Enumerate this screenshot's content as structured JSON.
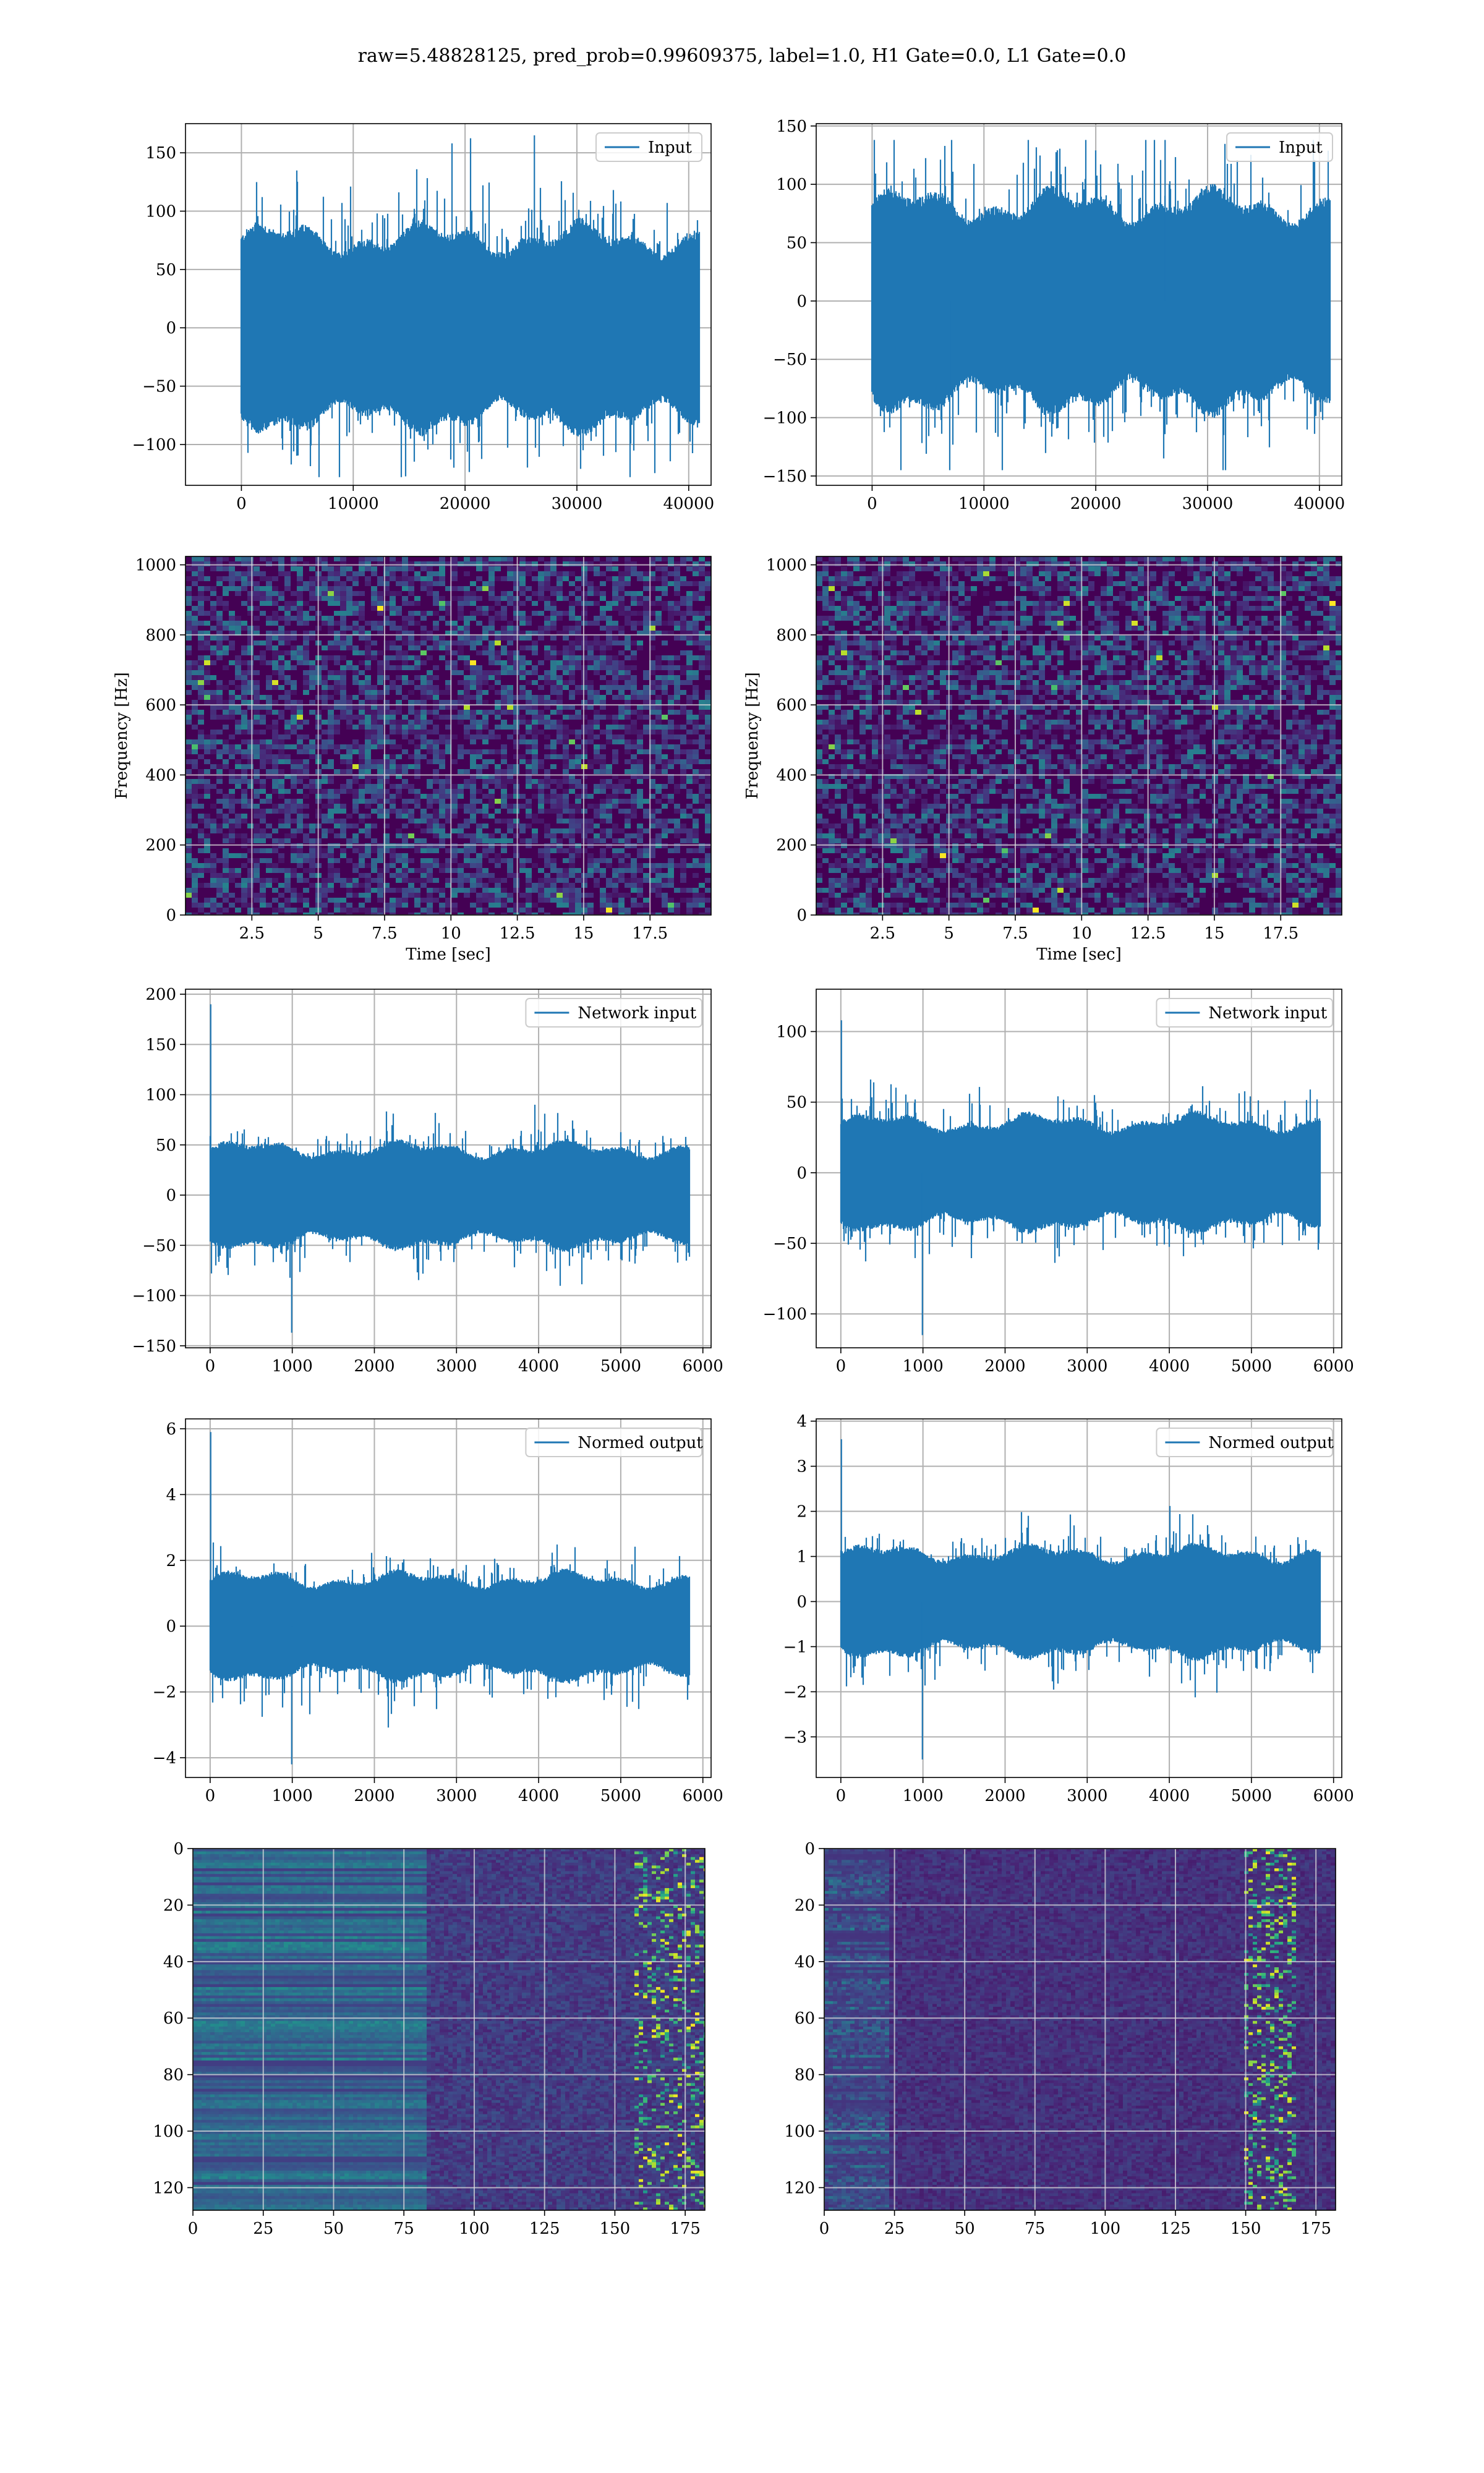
{
  "figure": {
    "suptitle": "raw=5.48828125, pred_prob=0.99609375, label=1.0, H1 Gate=0.0, L1 Gate=0.0"
  },
  "colors": {
    "line": "#1f77b4",
    "grid": "#b0b0b0",
    "viridis_low": "#440154",
    "viridis_high": "#fde725"
  },
  "chart_data": [
    {
      "id": "input-h1",
      "type": "line",
      "signal": "noise",
      "legend": "Input",
      "legend_loc": "upper right",
      "xlim": [
        -5000,
        42000
      ],
      "ylim": [
        -135,
        175
      ],
      "xticks": [
        0,
        10000,
        20000,
        30000,
        40000
      ],
      "yticks": [
        -100,
        -50,
        0,
        50,
        100,
        150
      ],
      "n_samples": 40960,
      "envelope": 75,
      "peak_max": 165,
      "peak_min": -128,
      "grid": true
    },
    {
      "id": "input-l1",
      "type": "line",
      "signal": "noise",
      "legend": "Input",
      "legend_loc": "upper right",
      "xlim": [
        -5000,
        42000
      ],
      "ylim": [
        -158,
        152
      ],
      "xticks": [
        0,
        10000,
        20000,
        30000,
        40000
      ],
      "yticks": [
        -150,
        -100,
        -50,
        0,
        50,
        100,
        150
      ],
      "n_samples": 40960,
      "envelope": 80,
      "peak_max": 138,
      "peak_min": -145,
      "grid": true
    },
    {
      "id": "spec-h1",
      "type": "heatmap",
      "kind": "spectrogram",
      "xlabel": "Time [sec]",
      "ylabel": "Frequency [Hz]",
      "xlim": [
        0,
        19.8
      ],
      "ylim": [
        0,
        1024
      ],
      "xticks": [
        2.5,
        5.0,
        7.5,
        10.0,
        12.5,
        15.0,
        17.5
      ],
      "yticks": [
        0,
        200,
        400,
        600,
        800,
        1000
      ],
      "colormap": "viridis",
      "grid": true
    },
    {
      "id": "spec-l1",
      "type": "heatmap",
      "kind": "spectrogram",
      "xlabel": "Time [sec]",
      "ylabel": "Frequency [Hz]",
      "xlim": [
        0,
        19.8
      ],
      "ylim": [
        0,
        1024
      ],
      "xticks": [
        2.5,
        5.0,
        7.5,
        10.0,
        12.5,
        15.0,
        17.5
      ],
      "yticks": [
        0,
        200,
        400,
        600,
        800,
        1000
      ],
      "colormap": "viridis",
      "grid": true
    },
    {
      "id": "network-h1",
      "type": "line",
      "signal": "noise",
      "legend": "Network input",
      "legend_loc": "upper right",
      "xlim": [
        -300,
        6100
      ],
      "ylim": [
        -152,
        205
      ],
      "xticks": [
        0,
        1000,
        2000,
        3000,
        4000,
        5000,
        6000
      ],
      "yticks": [
        -150,
        -100,
        -50,
        0,
        50,
        100,
        150,
        200
      ],
      "n_samples": 5840,
      "envelope": 45,
      "peak_max": 190,
      "peak_min": -137,
      "grid": true
    },
    {
      "id": "network-l1",
      "type": "line",
      "signal": "noise",
      "legend": "Network input",
      "legend_loc": "upper right",
      "xlim": [
        -300,
        6100
      ],
      "ylim": [
        -124,
        130
      ],
      "xticks": [
        0,
        1000,
        2000,
        3000,
        4000,
        5000,
        6000
      ],
      "yticks": [
        -100,
        -50,
        0,
        50,
        100
      ],
      "n_samples": 5840,
      "envelope": 35,
      "peak_max": 108,
      "peak_min": -115,
      "grid": true
    },
    {
      "id": "normed-h1",
      "type": "line",
      "signal": "noise",
      "legend": "Normed output",
      "legend_loc": "upper right",
      "xlim": [
        -300,
        6100
      ],
      "ylim": [
        -4.6,
        6.3
      ],
      "xticks": [
        0,
        1000,
        2000,
        3000,
        4000,
        5000,
        6000
      ],
      "yticks": [
        -4,
        -2,
        0,
        2,
        4,
        6
      ],
      "n_samples": 5840,
      "envelope": 1.4,
      "peak_max": 5.9,
      "peak_min": -4.2,
      "grid": true
    },
    {
      "id": "normed-l1",
      "type": "line",
      "signal": "noise",
      "legend": "Normed output",
      "legend_loc": "upper right",
      "xlim": [
        -300,
        6100
      ],
      "ylim": [
        -3.9,
        4.05
      ],
      "xticks": [
        0,
        1000,
        2000,
        3000,
        4000,
        5000,
        6000
      ],
      "yticks": [
        -3,
        -2,
        -1,
        0,
        1,
        2,
        3,
        4
      ],
      "n_samples": 5840,
      "envelope": 1.05,
      "peak_max": 3.6,
      "peak_min": -3.5,
      "grid": true
    },
    {
      "id": "features-h1",
      "type": "heatmap",
      "kind": "feature-map",
      "xlim": [
        0,
        182
      ],
      "ylim": [
        128,
        0
      ],
      "xticks": [
        0,
        25,
        50,
        75,
        100,
        125,
        150,
        175
      ],
      "yticks": [
        0,
        20,
        40,
        60,
        80,
        100,
        120
      ],
      "colormap": "viridis",
      "grid": true
    },
    {
      "id": "features-l1",
      "type": "heatmap",
      "kind": "feature-map",
      "xlim": [
        0,
        182
      ],
      "ylim": [
        128,
        0
      ],
      "xticks": [
        0,
        25,
        50,
        75,
        100,
        125,
        150,
        175
      ],
      "yticks": [
        0,
        20,
        40,
        60,
        80,
        100,
        120
      ],
      "colormap": "viridis",
      "grid": true
    }
  ]
}
